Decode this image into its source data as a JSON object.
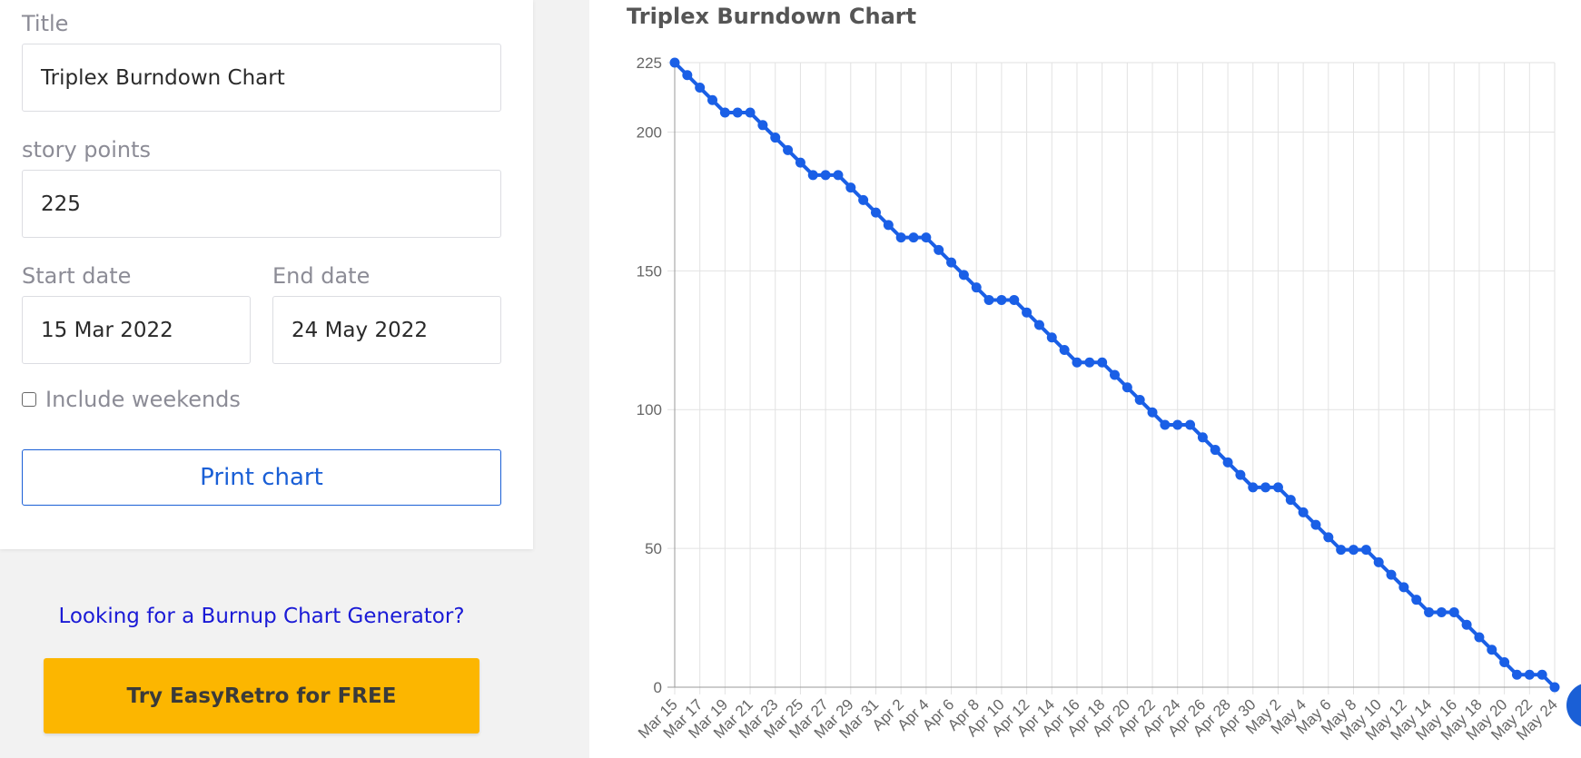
{
  "form": {
    "title_label": "Title",
    "title_value": "Triplex Burndown Chart",
    "points_label": "story points",
    "points_value": "225",
    "start_label": "Start date",
    "start_value": "15 Mar 2022",
    "end_label": "End date",
    "end_value": "24 May 2022",
    "weekends_label": "Include weekends",
    "weekends_checked": false,
    "print_label": "Print chart"
  },
  "promo": {
    "burnup_link": "Looking for a Burnup Chart Generator?",
    "try_button": "Try EasyRetro for FREE"
  },
  "colors": {
    "line": "#1a5fe6",
    "accent": "#1a5fd6",
    "promo_button": "#fcb600"
  },
  "chart_data": {
    "type": "line",
    "title": "Triplex Burndown Chart",
    "xlabel": "",
    "ylabel": "",
    "ylim": [
      0,
      225
    ],
    "yticks": [
      0,
      50,
      100,
      150,
      200,
      225
    ],
    "grid": true,
    "x": [
      "Mar 15",
      "Mar 16",
      "Mar 17",
      "Mar 18",
      "Mar 19",
      "Mar 20",
      "Mar 21",
      "Mar 22",
      "Mar 23",
      "Mar 24",
      "Mar 25",
      "Mar 26",
      "Mar 27",
      "Mar 28",
      "Mar 29",
      "Mar 30",
      "Mar 31",
      "Apr 1",
      "Apr 2",
      "Apr 3",
      "Apr 4",
      "Apr 5",
      "Apr 6",
      "Apr 7",
      "Apr 8",
      "Apr 9",
      "Apr 10",
      "Apr 11",
      "Apr 12",
      "Apr 13",
      "Apr 14",
      "Apr 15",
      "Apr 16",
      "Apr 17",
      "Apr 18",
      "Apr 19",
      "Apr 20",
      "Apr 21",
      "Apr 22",
      "Apr 23",
      "Apr 24",
      "Apr 25",
      "Apr 26",
      "Apr 27",
      "Apr 28",
      "Apr 29",
      "Apr 30",
      "May 1",
      "May 2",
      "May 3",
      "May 4",
      "May 5",
      "May 6",
      "May 7",
      "May 8",
      "May 9",
      "May 10",
      "May 11",
      "May 12",
      "May 13",
      "May 14",
      "May 15",
      "May 16",
      "May 17",
      "May 18",
      "May 19",
      "May 20",
      "May 21",
      "May 22",
      "May 23",
      "May 24"
    ],
    "xtick_labels": [
      "Mar 15",
      "Mar 17",
      "Mar 19",
      "Mar 21",
      "Mar 23",
      "Mar 25",
      "Mar 27",
      "Mar 29",
      "Mar 31",
      "Apr 2",
      "Apr 4",
      "Apr 6",
      "Apr 8",
      "Apr 10",
      "Apr 12",
      "Apr 14",
      "Apr 16",
      "Apr 18",
      "Apr 20",
      "Apr 22",
      "Apr 24",
      "Apr 26",
      "Apr 28",
      "Apr 30",
      "May 2",
      "May 4",
      "May 6",
      "May 8",
      "May 10",
      "May 12",
      "May 14",
      "May 16",
      "May 18",
      "May 20",
      "May 22",
      "May 24"
    ],
    "series": [
      {
        "values": [
          225,
          220.5,
          216,
          211.5,
          207,
          207,
          207,
          202.5,
          198,
          193.5,
          189,
          184.5,
          184.5,
          184.5,
          180,
          175.5,
          171,
          166.5,
          162,
          162,
          162,
          157.5,
          153,
          148.5,
          144,
          139.5,
          139.5,
          139.5,
          135,
          130.5,
          126,
          121.5,
          117,
          117,
          117,
          112.5,
          108,
          103.5,
          99,
          94.5,
          94.5,
          94.5,
          90,
          85.5,
          81,
          76.5,
          72,
          72,
          72,
          67.5,
          63,
          58.5,
          54,
          49.5,
          49.5,
          49.5,
          45,
          40.5,
          36,
          31.5,
          27,
          27,
          27,
          22.5,
          18,
          13.5,
          9,
          4.5,
          4.5,
          4.5,
          0
        ]
      }
    ]
  }
}
